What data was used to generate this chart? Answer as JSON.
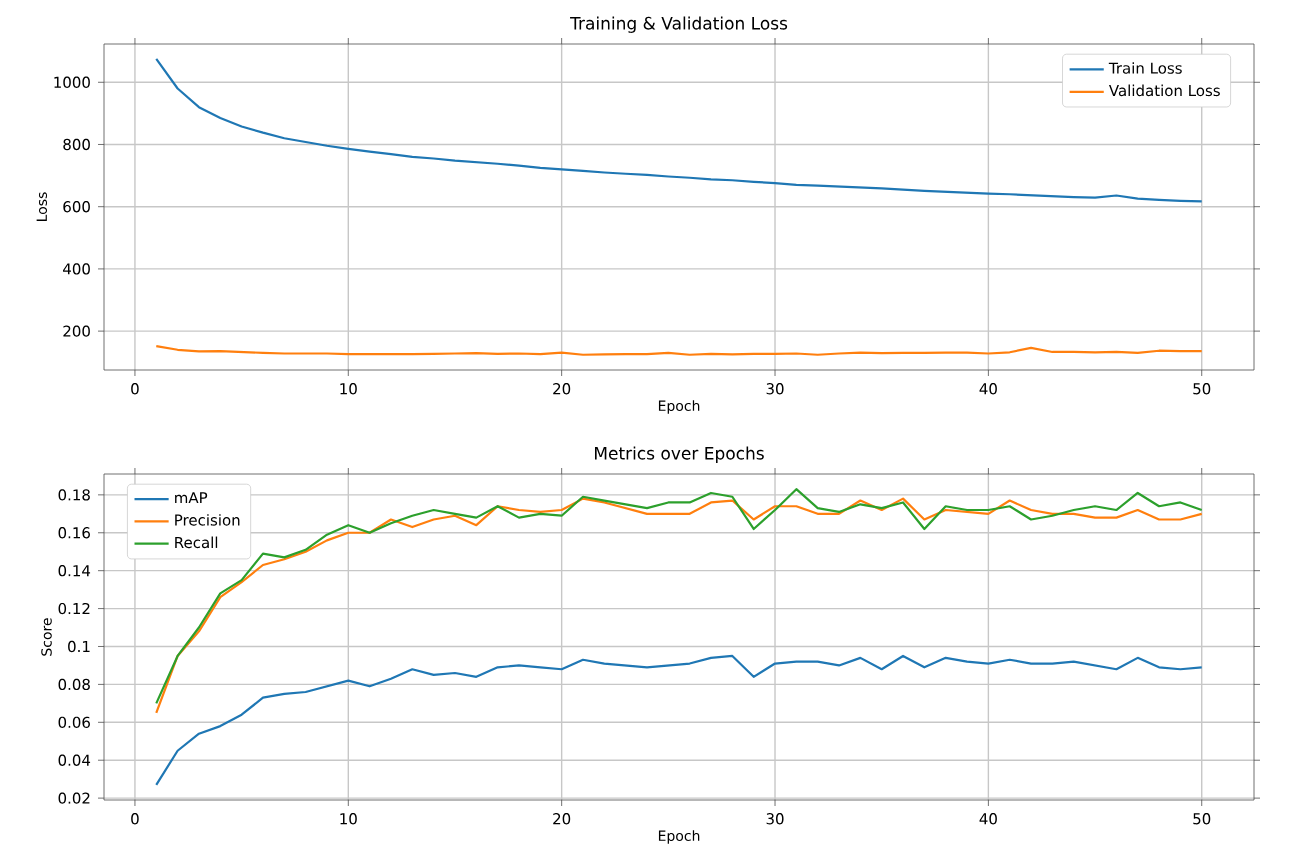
{
  "chart_data": [
    {
      "type": "line",
      "title": "Training & Validation Loss",
      "xlabel": "Epoch",
      "ylabel": "Loss",
      "x": [
        1,
        2,
        3,
        4,
        5,
        6,
        7,
        8,
        9,
        10,
        11,
        12,
        13,
        14,
        15,
        16,
        17,
        18,
        19,
        20,
        21,
        22,
        23,
        24,
        25,
        26,
        27,
        28,
        29,
        30,
        31,
        32,
        33,
        34,
        35,
        36,
        37,
        38,
        39,
        40,
        41,
        42,
        43,
        44,
        45,
        46,
        47,
        48,
        49,
        50
      ],
      "xlim": [
        -1.45,
        52.45
      ],
      "ylim": [
        75,
        1123
      ],
      "xticks": [
        0,
        10,
        20,
        30,
        40,
        50
      ],
      "yticks": [
        200,
        400,
        600,
        800,
        1000
      ],
      "grid": true,
      "legend": "top right",
      "series": [
        {
          "name": "Train Loss",
          "color": "#1f77b4",
          "values": [
            1075,
            980,
            920,
            885,
            858,
            838,
            820,
            808,
            796,
            786,
            777,
            769,
            760,
            755,
            748,
            743,
            738,
            732,
            725,
            720,
            715,
            710,
            706,
            702,
            697,
            693,
            688,
            685,
            680,
            676,
            670,
            668,
            665,
            662,
            659,
            655,
            651,
            648,
            645,
            642,
            640,
            637,
            634,
            631,
            629,
            636,
            626,
            622,
            619,
            617
          ]
        },
        {
          "name": "Validation Loss",
          "color": "#ff7f0e",
          "values": [
            152,
            140,
            135,
            136,
            133,
            130,
            128,
            128,
            128,
            126,
            126,
            126,
            126,
            127,
            128,
            129,
            127,
            128,
            126,
            131,
            124,
            125,
            126,
            126,
            130,
            124,
            127,
            125,
            127,
            127,
            128,
            124,
            128,
            131,
            129,
            130,
            130,
            131,
            131,
            128,
            132,
            146,
            133,
            133,
            132,
            133,
            130,
            137,
            136,
            136
          ]
        }
      ]
    },
    {
      "type": "line",
      "title": "Metrics over Epochs",
      "xlabel": "Epoch",
      "ylabel": "Score",
      "x": [
        1,
        2,
        3,
        4,
        5,
        6,
        7,
        8,
        9,
        10,
        11,
        12,
        13,
        14,
        15,
        16,
        17,
        18,
        19,
        20,
        21,
        22,
        23,
        24,
        25,
        26,
        27,
        28,
        29,
        30,
        31,
        32,
        33,
        34,
        35,
        36,
        37,
        38,
        39,
        40,
        41,
        42,
        43,
        44,
        45,
        46,
        47,
        48,
        49,
        50
      ],
      "xlim": [
        -1.45,
        52.45
      ],
      "ylim": [
        0.019,
        0.191
      ],
      "xticks": [
        0,
        10,
        20,
        30,
        40,
        50
      ],
      "yticks": [
        0.02,
        0.04,
        0.06,
        0.08,
        0.1,
        0.12,
        0.14,
        0.16,
        0.18
      ],
      "grid": true,
      "legend": "top left",
      "series": [
        {
          "name": "mAP",
          "color": "#1f77b4",
          "values": [
            0.027,
            0.045,
            0.054,
            0.058,
            0.064,
            0.073,
            0.075,
            0.076,
            0.079,
            0.082,
            0.079,
            0.083,
            0.088,
            0.085,
            0.086,
            0.084,
            0.089,
            0.09,
            0.089,
            0.088,
            0.093,
            0.091,
            0.09,
            0.089,
            0.09,
            0.091,
            0.094,
            0.095,
            0.084,
            0.091,
            0.092,
            0.092,
            0.09,
            0.094,
            0.088,
            0.095,
            0.089,
            0.094,
            0.092,
            0.091,
            0.093,
            0.091,
            0.091,
            0.092,
            0.09,
            0.088,
            0.094,
            0.089,
            0.088,
            0.089
          ]
        },
        {
          "name": "Precision",
          "color": "#ff7f0e",
          "values": [
            0.065,
            0.095,
            0.108,
            0.126,
            0.134,
            0.143,
            0.146,
            0.15,
            0.156,
            0.16,
            0.16,
            0.167,
            0.163,
            0.167,
            0.169,
            0.164,
            0.174,
            0.172,
            0.171,
            0.172,
            0.178,
            0.176,
            0.173,
            0.17,
            0.17,
            0.17,
            0.176,
            0.177,
            0.167,
            0.174,
            0.174,
            0.17,
            0.17,
            0.177,
            0.172,
            0.178,
            0.167,
            0.172,
            0.171,
            0.17,
            0.177,
            0.172,
            0.17,
            0.17,
            0.168,
            0.168,
            0.172,
            0.167,
            0.167,
            0.17
          ]
        },
        {
          "name": "Recall",
          "color": "#2ca02c",
          "values": [
            0.07,
            0.095,
            0.11,
            0.128,
            0.135,
            0.149,
            0.147,
            0.151,
            0.159,
            0.164,
            0.16,
            0.165,
            0.169,
            0.172,
            0.17,
            0.168,
            0.174,
            0.168,
            0.17,
            0.169,
            0.179,
            0.177,
            0.175,
            0.173,
            0.176,
            0.176,
            0.181,
            0.179,
            0.162,
            0.172,
            0.183,
            0.173,
            0.171,
            0.175,
            0.173,
            0.176,
            0.162,
            0.174,
            0.172,
            0.172,
            0.174,
            0.167,
            0.169,
            0.172,
            0.174,
            0.172,
            0.181,
            0.174,
            0.176,
            0.172
          ]
        }
      ]
    }
  ]
}
